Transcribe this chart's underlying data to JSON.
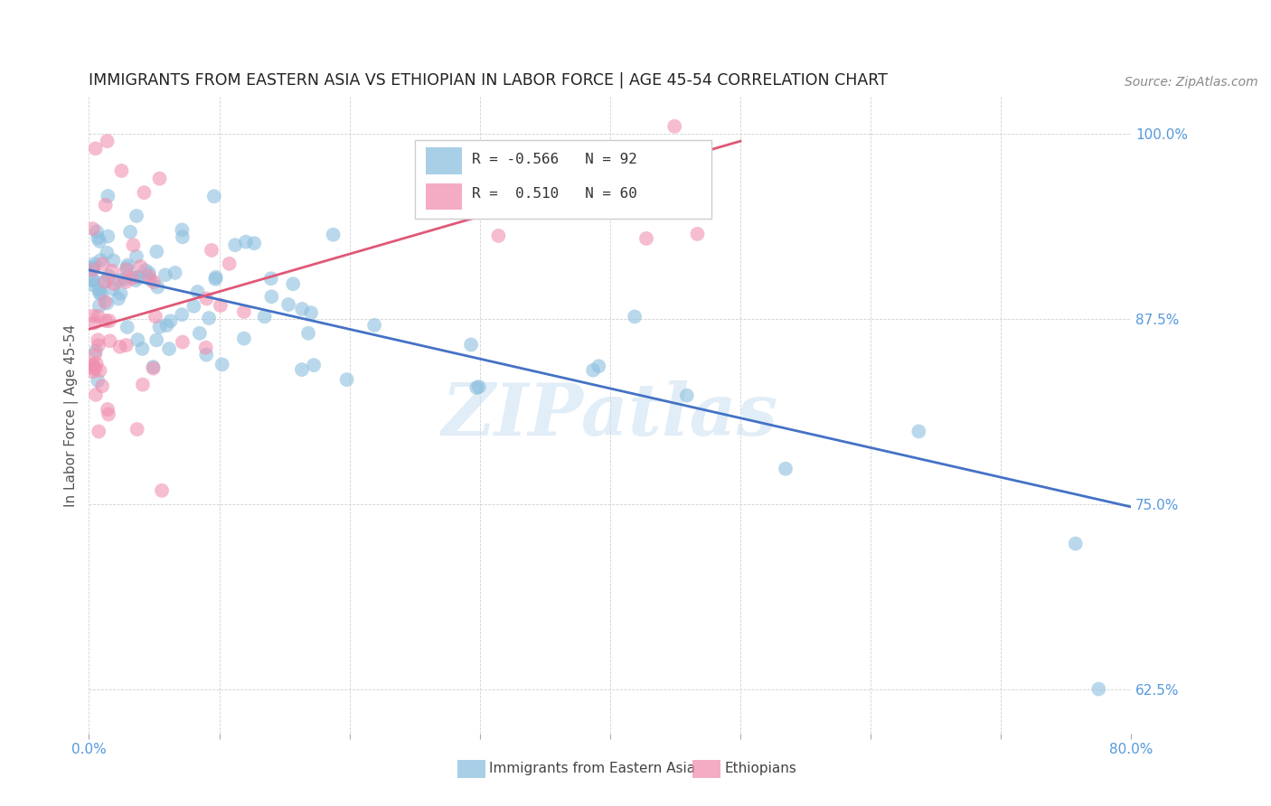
{
  "title": "IMMIGRANTS FROM EASTERN ASIA VS ETHIOPIAN IN LABOR FORCE | AGE 45-54 CORRELATION CHART",
  "source": "Source: ZipAtlas.com",
  "ylabel": "In Labor Force | Age 45-54",
  "x_min": 0.0,
  "x_max": 0.8,
  "y_min": 0.595,
  "y_max": 1.025,
  "x_ticks": [
    0.0,
    0.1,
    0.2,
    0.3,
    0.4,
    0.5,
    0.6,
    0.7,
    0.8
  ],
  "x_tick_labels": [
    "0.0%",
    "",
    "",
    "",
    "",
    "",
    "",
    "",
    "80.0%"
  ],
  "y_ticks": [
    0.625,
    0.75,
    0.875,
    1.0
  ],
  "y_tick_labels": [
    "62.5%",
    "75.0%",
    "87.5%",
    "100.0%"
  ],
  "legend_labels": [
    "Immigrants from Eastern Asia",
    "Ethiopians"
  ],
  "blue_R": "-0.566",
  "blue_N": 92,
  "pink_R": "0.510",
  "pink_N": 60,
  "blue_color": "#8cbfdf",
  "pink_color": "#f090b0",
  "blue_line_color": "#4472c4",
  "pink_line_color": "#e05878",
  "watermark": "ZIPatlas",
  "blue_line_x0": 0.0,
  "blue_line_x1": 0.8,
  "blue_line_y0": 0.908,
  "blue_line_y1": 0.748,
  "pink_line_x0": 0.0,
  "pink_line_x1": 0.5,
  "pink_line_y0": 0.868,
  "pink_line_y1": 0.995
}
